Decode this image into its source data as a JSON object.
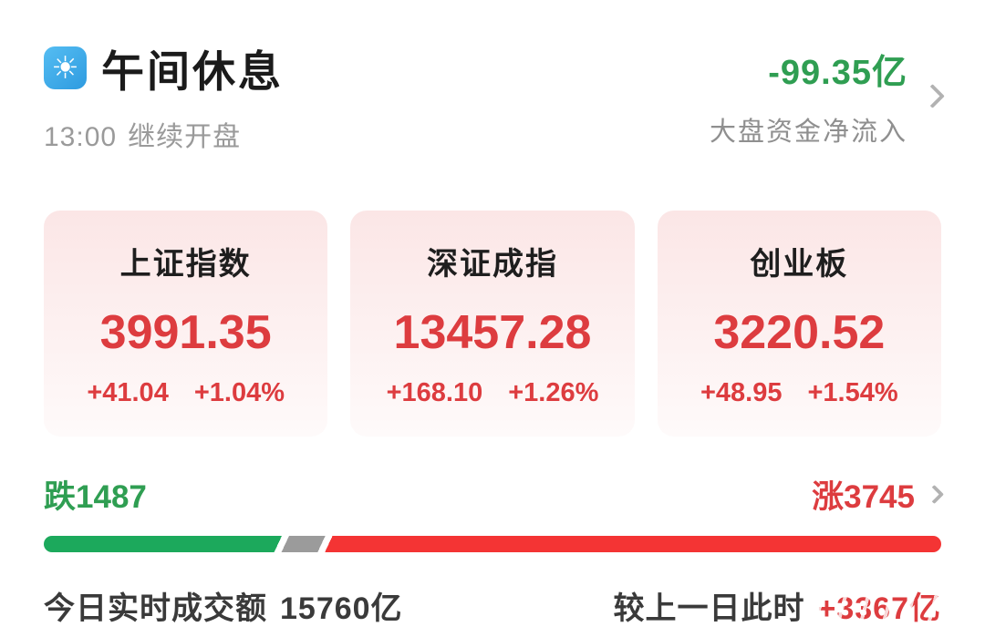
{
  "header": {
    "title": "午间休息",
    "subtitle_time": "13:00",
    "subtitle_label": "继续开盘",
    "net_flow_value": "-99.35亿",
    "net_flow_label": "大盘资金净流入"
  },
  "indices": [
    {
      "name": "上证指数",
      "value": "3991.35",
      "change": "+41.04",
      "change_pct": "+1.04%"
    },
    {
      "name": "深证成指",
      "value": "13457.28",
      "change": "+168.10",
      "change_pct": "+1.26%"
    },
    {
      "name": "创业板",
      "value": "3220.52",
      "change": "+48.95",
      "change_pct": "+1.54%"
    }
  ],
  "breadth": {
    "down_text": "跌",
    "down_count": "1487",
    "up_text": "涨",
    "up_count": "3745",
    "bar": {
      "down_pct": 26.3,
      "gap_pct": 0.8,
      "flat_pct": 4.0
    }
  },
  "turnover": {
    "today_label": "今日实时成交额",
    "today_value": "15760亿",
    "compare_label": "较上一日此时",
    "compare_value": "+3367亿"
  },
  "colors": {
    "up": "#dd3c3f",
    "down": "#2f9e52",
    "bar_up": "#f43434",
    "bar_down": "#1ca95c",
    "bar_flat": "#9b9b9b",
    "accent_blue": "#39a6e8"
  }
}
